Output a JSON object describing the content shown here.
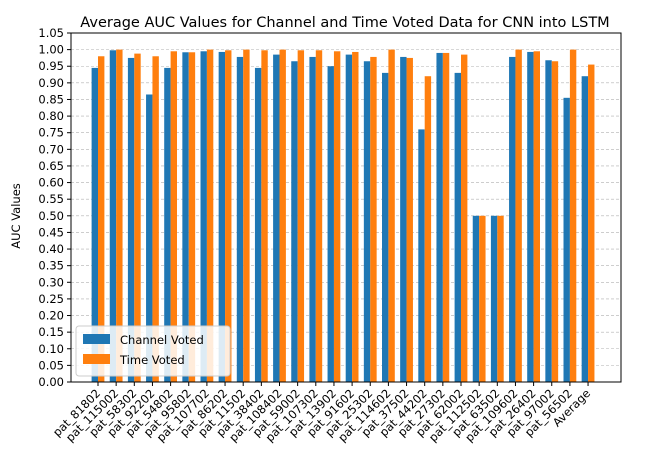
{
  "chart_data": {
    "type": "bar",
    "title": "Average AUC Values for Channel and Time Voted Data for CNN into LSTM",
    "xlabel": "",
    "ylabel": "AUC Values",
    "ylim": [
      0,
      1.05
    ],
    "yticks": [
      "0.00",
      "0.05",
      "0.10",
      "0.15",
      "0.20",
      "0.25",
      "0.30",
      "0.35",
      "0.40",
      "0.45",
      "0.50",
      "0.55",
      "0.60",
      "0.65",
      "0.70",
      "0.75",
      "0.80",
      "0.85",
      "0.90",
      "0.95",
      "1.00",
      "1.05"
    ],
    "grid": "horizontal-dashed",
    "legend_position": "lower-left",
    "categories": [
      "pat_81802",
      "pat_115002",
      "pat_58302",
      "pat_92202",
      "pat_54802",
      "pat_95802",
      "pat_107702",
      "pat_86202",
      "pat_11502",
      "pat_38402",
      "pat_108402",
      "pat_59002",
      "pat_107302",
      "pat_13902",
      "pat_91602",
      "pat_25302",
      "pat_114602",
      "pat_37502",
      "pat_44202",
      "pat_27302",
      "pat_62002",
      "pat_112502",
      "pat_63502",
      "pat_109602",
      "pat_26402",
      "pat_97002",
      "pat_56502",
      "Average"
    ],
    "series": [
      {
        "name": "Channel Voted",
        "color": "#1f77b4",
        "values": [
          0.945,
          0.998,
          0.975,
          0.865,
          0.945,
          0.992,
          0.995,
          0.993,
          0.978,
          0.945,
          0.985,
          0.965,
          0.978,
          0.95,
          0.985,
          0.965,
          0.93,
          0.978,
          0.76,
          0.99,
          0.93,
          0.5,
          0.5,
          0.978,
          0.993,
          0.968,
          0.855,
          0.92
        ]
      },
      {
        "name": "Time Voted",
        "color": "#ff7f0e",
        "values": [
          0.98,
          1.0,
          0.988,
          0.98,
          0.995,
          0.992,
          1.0,
          0.998,
          1.0,
          0.998,
          1.0,
          0.998,
          0.998,
          0.995,
          0.993,
          0.978,
          1.0,
          0.975,
          0.92,
          0.99,
          0.985,
          0.5,
          0.5,
          1.0,
          0.995,
          0.965,
          1.0,
          0.955
        ]
      }
    ]
  }
}
